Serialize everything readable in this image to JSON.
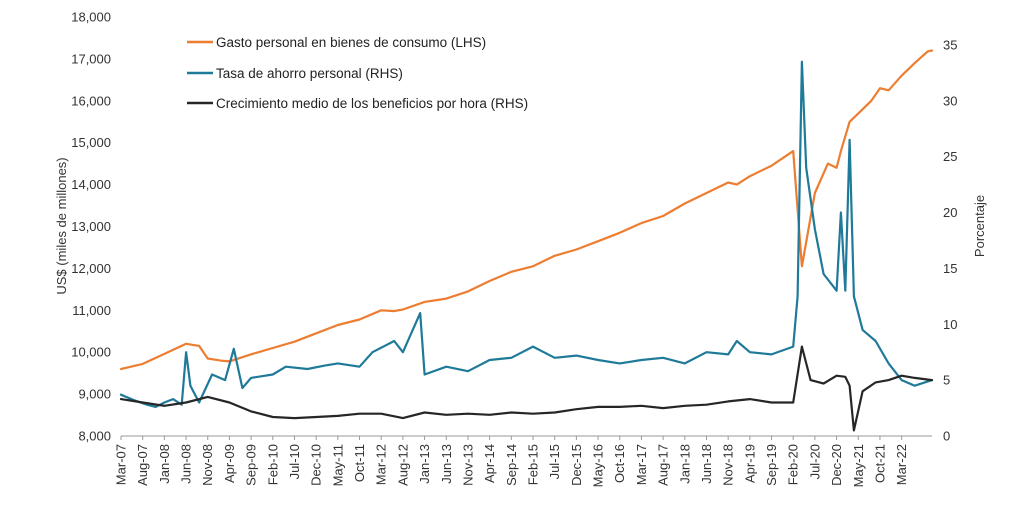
{
  "chart_data": {
    "type": "line",
    "ylabel_left": "US$ (miles de millones)",
    "ylabel_right": "Porcentaje",
    "ylim_left": [
      8000,
      18000
    ],
    "ylim_right": [
      0,
      37.5
    ],
    "yticks_left": [
      "8,000",
      "9,000",
      "10,000",
      "11,000",
      "12,000",
      "13,000",
      "14,000",
      "15,000",
      "16,000",
      "17,000",
      "18,000"
    ],
    "yticks_right": [
      "0",
      "5",
      "10",
      "15",
      "20",
      "25",
      "30",
      "35"
    ],
    "xticks": [
      "Mar-07",
      "Aug-07",
      "Jan-08",
      "Jun-08",
      "Nov-08",
      "Apr-09",
      "Sep-09",
      "Feb-10",
      "Jul-10",
      "Dec-10",
      "May-11",
      "Oct-11",
      "Mar-12",
      "Aug-12",
      "Jan-13",
      "Jun-13",
      "Nov-13",
      "Apr-14",
      "Sep-14",
      "Feb-15",
      "Jul-15",
      "Dec-15",
      "May-16",
      "Oct-16",
      "Mar-17",
      "Aug-17",
      "Jan-18",
      "Jun-18",
      "Nov-18",
      "Apr-19",
      "Sep-19",
      "Feb-20",
      "Jul-20",
      "Dec-20",
      "May-21",
      "Oct-21",
      "Mar-22"
    ],
    "grid": false,
    "legend_position": "top-left",
    "series": [
      {
        "name": "Gasto personal en bienes de consumo (LHS)",
        "axis": "left",
        "color": "#ED7D31",
        "points": [
          [
            "2007-03",
            9600
          ],
          [
            "2007-08",
            9720
          ],
          [
            "2008-01",
            9960
          ],
          [
            "2008-06",
            10200
          ],
          [
            "2008-09",
            10150
          ],
          [
            "2008-11",
            9850
          ],
          [
            "2009-02",
            9800
          ],
          [
            "2009-04",
            9780
          ],
          [
            "2009-09",
            9950
          ],
          [
            "2010-02",
            10100
          ],
          [
            "2010-07",
            10250
          ],
          [
            "2010-12",
            10450
          ],
          [
            "2011-05",
            10650
          ],
          [
            "2011-10",
            10780
          ],
          [
            "2012-03",
            11000
          ],
          [
            "2012-06",
            10980
          ],
          [
            "2012-08",
            11020
          ],
          [
            "2013-01",
            11200
          ],
          [
            "2013-06",
            11280
          ],
          [
            "2013-11",
            11450
          ],
          [
            "2014-04",
            11700
          ],
          [
            "2014-09",
            11920
          ],
          [
            "2015-02",
            12050
          ],
          [
            "2015-07",
            12300
          ],
          [
            "2015-12",
            12450
          ],
          [
            "2016-05",
            12650
          ],
          [
            "2016-10",
            12850
          ],
          [
            "2017-03",
            13080
          ],
          [
            "2017-08",
            13250
          ],
          [
            "2018-01",
            13550
          ],
          [
            "2018-06",
            13800
          ],
          [
            "2018-11",
            14050
          ],
          [
            "2019-01",
            14000
          ],
          [
            "2019-04",
            14200
          ],
          [
            "2019-09",
            14450
          ],
          [
            "2020-02",
            14800
          ],
          [
            "2020-04",
            12050
          ],
          [
            "2020-07",
            13800
          ],
          [
            "2020-10",
            14500
          ],
          [
            "2020-12",
            14400
          ],
          [
            "2021-01",
            14800
          ],
          [
            "2021-03",
            15500
          ],
          [
            "2021-05",
            15700
          ],
          [
            "2021-08",
            16000
          ],
          [
            "2021-10",
            16300
          ],
          [
            "2021-12",
            16250
          ],
          [
            "2022-03",
            16600
          ],
          [
            "2022-06",
            16900
          ],
          [
            "2022-09",
            17180
          ],
          [
            "2022-10",
            17200
          ]
        ]
      },
      {
        "name": "Tasa de ahorro personal (RHS)",
        "axis": "right",
        "color": "#1F7A99",
        "points": [
          [
            "2007-03",
            3.7
          ],
          [
            "2007-06",
            3.2
          ],
          [
            "2007-09",
            2.8
          ],
          [
            "2007-11",
            2.6
          ],
          [
            "2008-01",
            3.0
          ],
          [
            "2008-03",
            3.3
          ],
          [
            "2008-05",
            2.8
          ],
          [
            "2008-06",
            7.5
          ],
          [
            "2008-07",
            4.5
          ],
          [
            "2008-09",
            3.0
          ],
          [
            "2008-12",
            5.5
          ],
          [
            "2009-03",
            5.0
          ],
          [
            "2009-05",
            7.8
          ],
          [
            "2009-07",
            4.3
          ],
          [
            "2009-09",
            5.2
          ],
          [
            "2010-02",
            5.5
          ],
          [
            "2010-05",
            6.2
          ],
          [
            "2010-10",
            6.0
          ],
          [
            "2011-02",
            6.3
          ],
          [
            "2011-05",
            6.5
          ],
          [
            "2011-10",
            6.2
          ],
          [
            "2012-01",
            7.5
          ],
          [
            "2012-06",
            8.5
          ],
          [
            "2012-08",
            7.5
          ],
          [
            "2012-12",
            11.0
          ],
          [
            "2013-01",
            5.5
          ],
          [
            "2013-06",
            6.2
          ],
          [
            "2013-11",
            5.8
          ],
          [
            "2014-04",
            6.8
          ],
          [
            "2014-09",
            7.0
          ],
          [
            "2015-02",
            8.0
          ],
          [
            "2015-07",
            7.0
          ],
          [
            "2015-12",
            7.2
          ],
          [
            "2016-05",
            6.8
          ],
          [
            "2016-10",
            6.5
          ],
          [
            "2017-03",
            6.8
          ],
          [
            "2017-08",
            7.0
          ],
          [
            "2018-01",
            6.5
          ],
          [
            "2018-06",
            7.5
          ],
          [
            "2018-11",
            7.3
          ],
          [
            "2019-01",
            8.5
          ],
          [
            "2019-04",
            7.5
          ],
          [
            "2019-09",
            7.3
          ],
          [
            "2020-02",
            8.0
          ],
          [
            "2020-03",
            12.5
          ],
          [
            "2020-04",
            33.5
          ],
          [
            "2020-05",
            24.0
          ],
          [
            "2020-07",
            18.5
          ],
          [
            "2020-09",
            14.5
          ],
          [
            "2020-12",
            13.0
          ],
          [
            "2021-01",
            20.0
          ],
          [
            "2021-02",
            13.0
          ],
          [
            "2021-03",
            26.5
          ],
          [
            "2021-04",
            12.5
          ],
          [
            "2021-06",
            9.5
          ],
          [
            "2021-09",
            8.5
          ],
          [
            "2021-12",
            6.5
          ],
          [
            "2022-03",
            5.0
          ],
          [
            "2022-06",
            4.5
          ],
          [
            "2022-10",
            5.0
          ]
        ]
      },
      {
        "name": "Crecimiento medio de los beneficios por hora (RHS)",
        "axis": "right",
        "color": "#262626",
        "points": [
          [
            "2007-03",
            3.3
          ],
          [
            "2007-08",
            3.0
          ],
          [
            "2008-01",
            2.7
          ],
          [
            "2008-06",
            3.0
          ],
          [
            "2008-11",
            3.5
          ],
          [
            "2009-04",
            3.0
          ],
          [
            "2009-09",
            2.2
          ],
          [
            "2010-02",
            1.7
          ],
          [
            "2010-07",
            1.6
          ],
          [
            "2010-12",
            1.7
          ],
          [
            "2011-05",
            1.8
          ],
          [
            "2011-10",
            2.0
          ],
          [
            "2012-03",
            2.0
          ],
          [
            "2012-08",
            1.6
          ],
          [
            "2013-01",
            2.1
          ],
          [
            "2013-06",
            1.9
          ],
          [
            "2013-11",
            2.0
          ],
          [
            "2014-04",
            1.9
          ],
          [
            "2014-09",
            2.1
          ],
          [
            "2015-02",
            2.0
          ],
          [
            "2015-07",
            2.1
          ],
          [
            "2015-12",
            2.4
          ],
          [
            "2016-05",
            2.6
          ],
          [
            "2016-10",
            2.6
          ],
          [
            "2017-03",
            2.7
          ],
          [
            "2017-08",
            2.5
          ],
          [
            "2018-01",
            2.7
          ],
          [
            "2018-06",
            2.8
          ],
          [
            "2018-11",
            3.1
          ],
          [
            "2019-04",
            3.3
          ],
          [
            "2019-09",
            3.0
          ],
          [
            "2020-02",
            3.0
          ],
          [
            "2020-04",
            8.0
          ],
          [
            "2020-06",
            5.0
          ],
          [
            "2020-09",
            4.7
          ],
          [
            "2020-12",
            5.4
          ],
          [
            "2021-02",
            5.3
          ],
          [
            "2021-03",
            4.5
          ],
          [
            "2021-04",
            0.5
          ],
          [
            "2021-06",
            4.0
          ],
          [
            "2021-09",
            4.8
          ],
          [
            "2021-12",
            5.0
          ],
          [
            "2022-03",
            5.4
          ],
          [
            "2022-06",
            5.2
          ],
          [
            "2022-10",
            5.0
          ]
        ]
      }
    ]
  }
}
